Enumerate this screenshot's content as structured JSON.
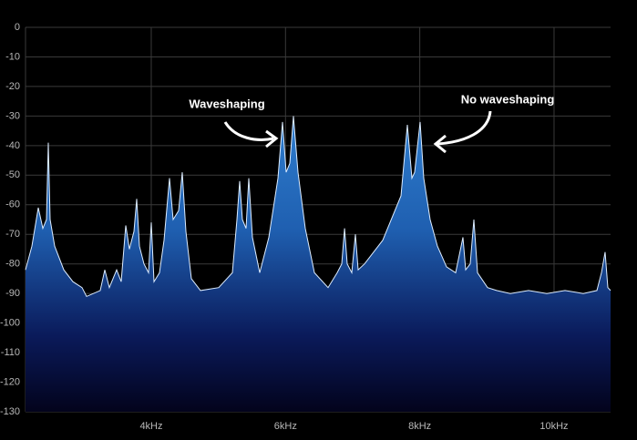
{
  "chart_data": {
    "type": "area",
    "x": [
      2127,
      2222,
      2317,
      2385,
      2439,
      2466,
      2494,
      2561,
      2697,
      2833,
      2969,
      3037,
      3240,
      3308,
      3376,
      3485,
      3552,
      3620,
      3675,
      3742,
      3783,
      3824,
      3892,
      3960,
      4000,
      4041,
      4123,
      4190,
      4272,
      4326,
      4408,
      4462,
      4516,
      4598,
      4733,
      5005,
      5208,
      5276,
      5317,
      5358,
      5412,
      5453,
      5507,
      5616,
      5751,
      5887,
      5955,
      6009,
      6064,
      6118,
      6186,
      6295,
      6430,
      6634,
      6770,
      6838,
      6879,
      6919,
      6987,
      7041,
      7082,
      7177,
      7448,
      7720,
      7815,
      7883,
      7924,
      8005,
      8059,
      8154,
      8263,
      8399,
      8534,
      8643,
      8684,
      8751,
      8806,
      8860,
      9009,
      9145,
      9349,
      9620,
      9892,
      10163,
      10435,
      10638,
      10706,
      10761,
      10801,
      10842
    ],
    "values": [
      -82,
      -74,
      -61,
      -68,
      -65,
      -39,
      -65,
      -74,
      -82,
      -86,
      -88,
      -91,
      -89,
      -82,
      -88,
      -82,
      -86,
      -67,
      -75,
      -69,
      -58,
      -74,
      -80,
      -83,
      -66,
      -86,
      -83,
      -72,
      -51,
      -65,
      -62,
      -49,
      -69,
      -85,
      -89,
      -88,
      -83,
      -65,
      -52,
      -65,
      -68,
      -51,
      -71,
      -83,
      -71,
      -51,
      -32,
      -49,
      -46,
      -30,
      -49,
      -68,
      -83,
      -88,
      -83,
      -80,
      -68,
      -80,
      -83,
      -70,
      -82,
      -80,
      -72,
      -57,
      -33,
      -51,
      -49,
      -32,
      -51,
      -65,
      -74,
      -81,
      -83,
      -71,
      -82,
      -80,
      -65,
      -83,
      -88,
      -89,
      -90,
      -89,
      -90,
      -89,
      -90,
      -89,
      -83,
      -76,
      -88,
      -89
    ],
    "color": "#2f7fd0",
    "xlim": [
      2127,
      10842
    ],
    "ylim": [
      -130,
      0
    ],
    "xticks": [
      {
        "value": 4000,
        "label": "4kHz"
      },
      {
        "value": 6000,
        "label": "6kHz"
      },
      {
        "value": 8000,
        "label": "8kHz"
      },
      {
        "value": 10000,
        "label": "10kHz"
      }
    ],
    "yticks": [
      0,
      -10,
      -20,
      -30,
      -40,
      -50,
      -60,
      -70,
      -80,
      -90,
      -100,
      -110,
      -120,
      -130
    ],
    "grid": true,
    "annotations": [
      "Waveshaping",
      "No waveshaping"
    ]
  }
}
